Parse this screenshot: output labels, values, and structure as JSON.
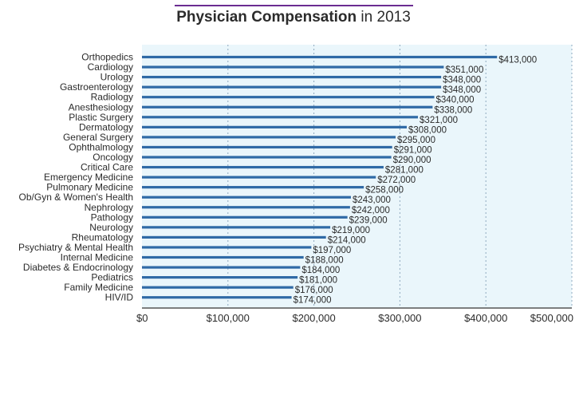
{
  "title": {
    "strong": "Physician Compensation",
    "rest": " in 2013"
  },
  "colors": {
    "accent": "#6b2c91",
    "bar": "#2f6aa6",
    "plot_bg": "#eaf6fb"
  },
  "chart_data": {
    "type": "bar",
    "orientation": "horizontal",
    "title": "Physician Compensation in 2013",
    "categories": [
      "Orthopedics",
      "Cardiology",
      "Urology",
      "Gastroenterology",
      "Radiology",
      "Anesthesiology",
      "Plastic Surgery",
      "Dermatology",
      "General Surgery",
      "Ophthalmology",
      "Oncology",
      "Critical Care",
      "Emergency Medicine",
      "Pulmonary Medicine",
      "Ob/Gyn & Women's Health",
      "Nephrology",
      "Pathology",
      "Neurology",
      "Rheumatology",
      "Psychiatry & Mental Health",
      "Internal Medicine",
      "Diabetes & Endocrinology",
      "Pediatrics",
      "Family Medicine",
      "HIV/ID"
    ],
    "values": [
      413000,
      351000,
      348000,
      348000,
      340000,
      338000,
      321000,
      308000,
      295000,
      291000,
      290000,
      281000,
      272000,
      258000,
      243000,
      242000,
      239000,
      219000,
      214000,
      197000,
      188000,
      184000,
      181000,
      176000,
      174000
    ],
    "value_labels": [
      "$413,000",
      "$351,000",
      "$348,000",
      "$348,000",
      "$340,000",
      "$338,000",
      "$321,000",
      "$308,000",
      "$295,000",
      "$291,000",
      "$290,000",
      "$281,000",
      "$272,000",
      "$258,000",
      "$243,000",
      "$242,000",
      "$239,000",
      "$219,000",
      "$214,000",
      "$197,000",
      "$188,000",
      "$184,000",
      "$181,000",
      "$176,000",
      "$174,000"
    ],
    "xlim": [
      0,
      500000
    ],
    "xticks": [
      0,
      100000,
      200000,
      300000,
      400000,
      500000
    ],
    "xtick_labels": [
      "$0",
      "$100,000",
      "$200,000",
      "$300,000",
      "$400,000",
      "$500,000"
    ],
    "xlabel": "",
    "ylabel": "",
    "grid": "vertical dotted"
  }
}
